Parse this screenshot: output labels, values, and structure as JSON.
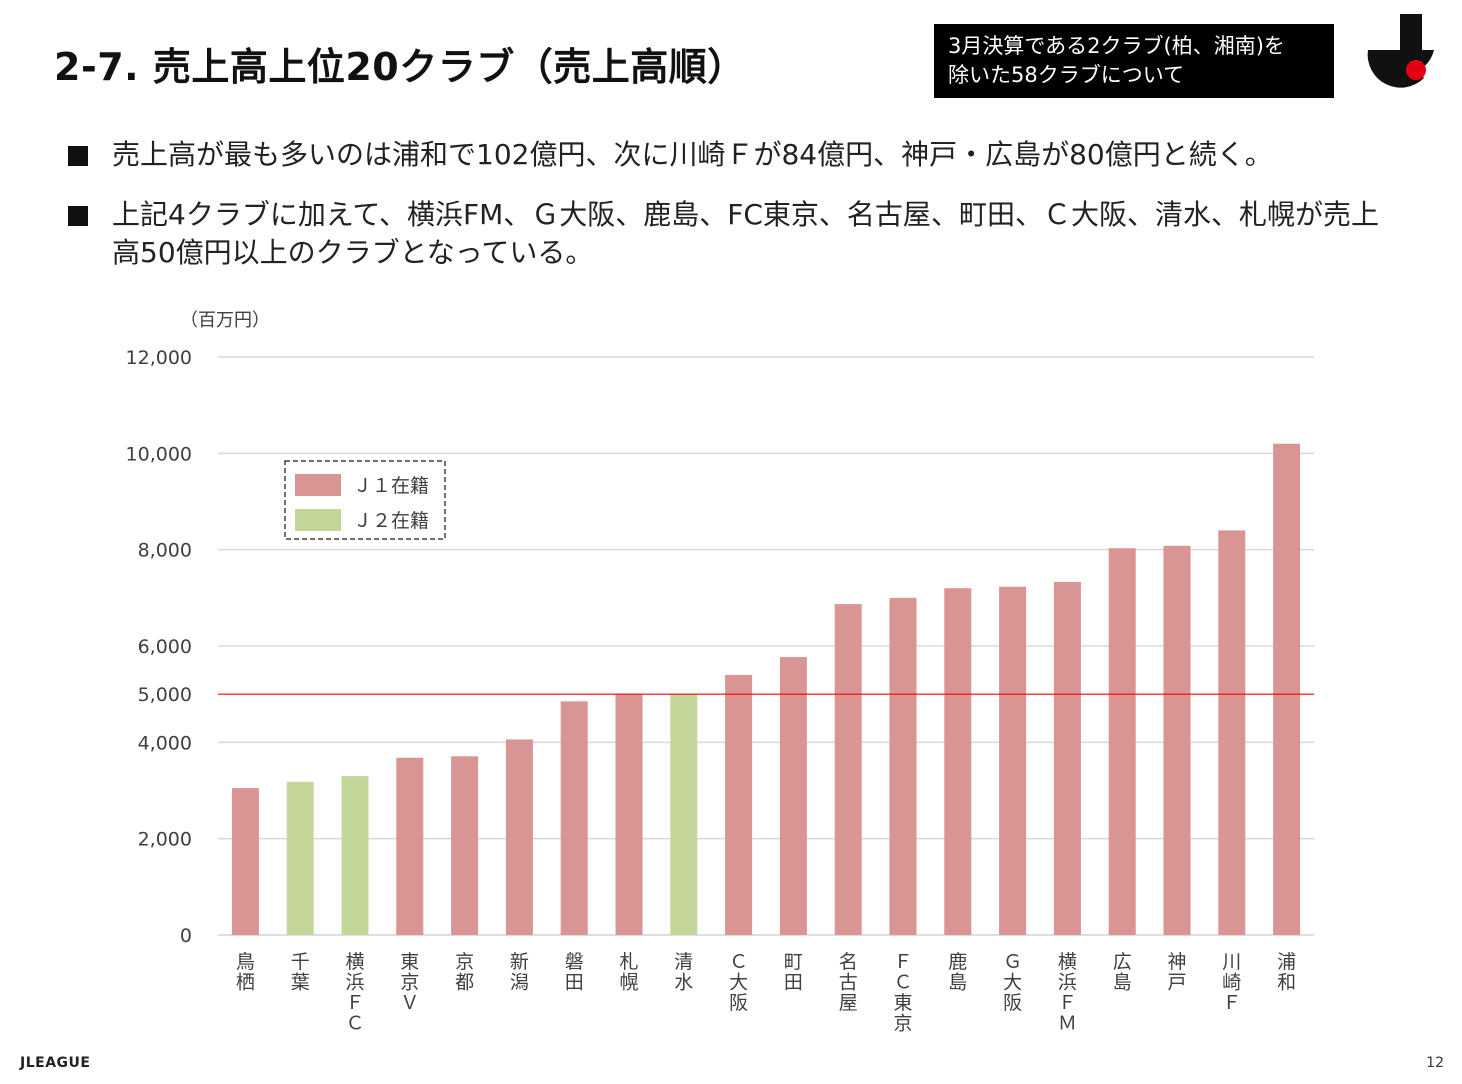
{
  "header": {
    "title": "2-7. 売上高上位20クラブ（売上高順）",
    "note_line1": "3月決算である2クラブ(柏、湘南)を",
    "note_line2": "除いた58クラブについて"
  },
  "bullets": [
    {
      "text": "売上高が最も多いのは浦和で102億円、次に川崎Ｆが84億円、神戸・広島が80億円と続く。"
    },
    {
      "text": "上記4クラブに加えて、横浜FM、Ｇ大阪、鹿島、FC東京、名古屋、町田、Ｃ大阪、清水、札幌が売上高50億円以上のクラブとなっている。"
    }
  ],
  "chart_data": {
    "type": "bar",
    "unit_label": "（百万円）",
    "ylim": [
      0,
      12000
    ],
    "yticks": [
      0,
      2000,
      4000,
      5000,
      6000,
      8000,
      10000,
      12000
    ],
    "ytick_labels": [
      "0",
      "2,000",
      "4,000",
      "5,000",
      "6,000",
      "8,000",
      "10,000",
      "12,000"
    ],
    "reference_line": 5000,
    "categories": [
      "鳥栖",
      "千葉",
      "横浜FC",
      "東京V",
      "京都",
      "新潟",
      "磐田",
      "札幌",
      "清水",
      "C大阪",
      "町田",
      "名古屋",
      "FC東京",
      "鹿島",
      "G大阪",
      "横浜FM",
      "広島",
      "神戸",
      "川崎F",
      "浦和"
    ],
    "category_labels": [
      "鳥栖",
      "千葉",
      "横浜ＦＣ",
      "東京Ｖ",
      "京都",
      "新潟",
      "磐田",
      "札幌",
      "清水",
      "Ｃ大阪",
      "町田",
      "名古屋",
      "ＦＣ東京",
      "鹿島",
      "Ｇ大阪",
      "横浜ＦＭ",
      "広島",
      "神戸",
      "川崎Ｆ",
      "浦和"
    ],
    "values": [
      3050,
      3180,
      3300,
      3680,
      3710,
      4060,
      4850,
      5000,
      5000,
      5400,
      5770,
      6870,
      7000,
      7200,
      7230,
      7330,
      8030,
      8080,
      8400,
      10200
    ],
    "division": [
      "J1",
      "J2",
      "J2",
      "J1",
      "J1",
      "J1",
      "J1",
      "J1",
      "J2",
      "J1",
      "J1",
      "J1",
      "J1",
      "J1",
      "J1",
      "J1",
      "J1",
      "J1",
      "J1",
      "J1"
    ],
    "legend": [
      {
        "key": "J1",
        "label": "Ｊ１在籍",
        "color": "#d99594"
      },
      {
        "key": "J2",
        "label": "Ｊ２在籍",
        "color": "#c4d79b"
      }
    ],
    "colors": {
      "gridline": "#d9d9d9",
      "reference_line": "#ff0000",
      "axis_text": "#404040"
    }
  },
  "footer": {
    "brand": "JLEAGUE",
    "page": "12"
  }
}
